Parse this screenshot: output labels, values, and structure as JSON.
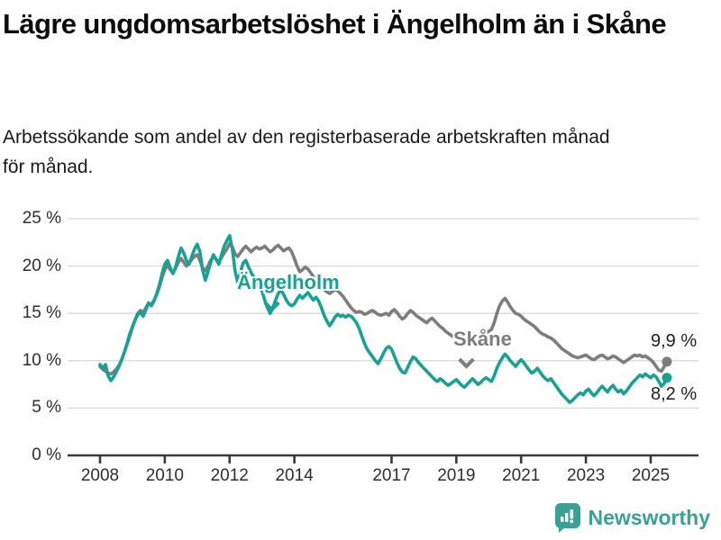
{
  "header": {
    "title": "Lägre ungdomsarbetslöshet i Ängelholm än i Skåne",
    "subtitle": "Arbetssökande som andel av den registerbaserade arbetskraften månad för månad."
  },
  "chart_data": {
    "type": "line",
    "title": "Lägre ungdomsarbetslöshet i Ängelholm än i Skåne",
    "unit": "%",
    "x_start": "2008-01",
    "x_end": "2025-07",
    "x_frequency": "monthly",
    "ylim": [
      0,
      25
    ],
    "grid": "horizontal",
    "legend_position": "inline-labels",
    "y_tick_labels": [
      "25 %",
      "20 %",
      "15 %",
      "10 %",
      "5 %",
      "0 %"
    ],
    "x_tick_labels": [
      "2008",
      "2010",
      "2012",
      "2014",
      "2017",
      "2019",
      "2021",
      "2023",
      "2025"
    ],
    "series": [
      {
        "name": "Ängelholm",
        "color": "#17a293",
        "end_label": "8,2 %",
        "end_value": 8.2,
        "values": [
          9.6,
          9.2,
          9.6,
          8.4,
          7.9,
          8.3,
          8.8,
          9.4,
          10.1,
          10.9,
          11.8,
          12.8,
          13.6,
          14.3,
          14.9,
          15.1,
          14.7,
          15.4,
          16.1,
          15.8,
          16.3,
          17.1,
          18.0,
          19.2,
          20.2,
          20.6,
          19.8,
          19.2,
          19.9,
          21.0,
          21.9,
          21.4,
          20.6,
          20.2,
          21.0,
          21.8,
          22.3,
          21.5,
          19.6,
          18.5,
          19.4,
          20.4,
          21.2,
          20.7,
          20.2,
          21.2,
          22.1,
          22.7,
          23.2,
          21.8,
          19.5,
          18.3,
          19.3,
          20.3,
          20.6,
          19.9,
          19.3,
          18.8,
          18.3,
          17.8,
          17.4,
          16.4,
          15.6,
          15.0,
          15.6,
          16.4,
          17.1,
          17.5,
          17.0,
          16.4,
          16.0,
          15.8,
          16.0,
          16.5,
          16.9,
          16.6,
          16.9,
          17.2,
          16.8,
          16.4,
          16.7,
          16.3,
          15.6,
          14.8,
          14.2,
          13.7,
          14.1,
          14.6,
          14.9,
          14.7,
          14.8,
          14.6,
          14.8,
          14.7,
          14.4,
          14.0,
          13.4,
          12.6,
          11.8,
          11.2,
          10.8,
          10.4,
          10.0,
          9.7,
          10.2,
          10.8,
          11.3,
          11.5,
          11.2,
          10.5,
          9.8,
          9.2,
          8.8,
          8.7,
          9.3,
          9.9,
          10.4,
          10.2,
          9.8,
          9.5,
          9.2,
          8.9,
          8.6,
          8.3,
          8.0,
          7.8,
          8.1,
          7.9,
          7.6,
          7.4,
          7.6,
          7.8,
          8.0,
          7.7,
          7.4,
          7.2,
          7.5,
          7.8,
          8.1,
          7.8,
          7.5,
          7.7,
          8.0,
          8.2,
          8.0,
          7.8,
          8.4,
          9.2,
          9.8,
          10.3,
          10.7,
          10.4,
          10.0,
          9.7,
          9.4,
          9.8,
          10.1,
          9.8,
          9.4,
          9.0,
          8.7,
          8.9,
          9.2,
          8.8,
          8.4,
          8.1,
          7.9,
          8.1,
          7.7,
          7.3,
          6.9,
          6.5,
          6.2,
          5.9,
          5.6,
          5.8,
          6.1,
          6.4,
          6.6,
          6.4,
          6.8,
          7.0,
          6.6,
          6.3,
          6.6,
          7.0,
          7.3,
          7.0,
          6.7,
          7.1,
          7.4,
          7.0,
          6.7,
          6.9,
          6.5,
          6.8,
          7.2,
          7.6,
          7.9,
          8.2,
          8.5,
          8.3,
          8.6,
          8.4,
          8.2,
          8.5,
          8.3,
          7.8,
          7.3,
          7.6,
          8.2
        ]
      },
      {
        "name": "Skåne",
        "color": "#7d7d7d",
        "end_label": "9,9 %",
        "end_value": 9.9,
        "values": [
          9.4,
          9.1,
          8.9,
          8.7,
          8.6,
          8.8,
          9.1,
          9.5,
          10.1,
          10.9,
          11.7,
          12.6,
          13.5,
          14.3,
          15.0,
          15.3,
          15.1,
          15.6,
          16.1,
          15.9,
          16.4,
          17.0,
          17.8,
          18.8,
          19.6,
          20.1,
          19.6,
          19.3,
          19.8,
          20.4,
          20.8,
          20.4,
          20.0,
          20.3,
          20.7,
          21.0,
          21.2,
          20.6,
          19.8,
          19.5,
          20.0,
          20.6,
          21.0,
          20.7,
          20.4,
          20.9,
          21.4,
          21.8,
          22.4,
          22.0,
          21.3,
          21.0,
          21.4,
          21.8,
          22.1,
          21.8,
          21.5,
          21.8,
          22.0,
          21.8,
          21.9,
          22.1,
          21.8,
          21.5,
          21.7,
          22.0,
          22.2,
          21.9,
          21.6,
          21.8,
          21.9,
          21.5,
          20.8,
          20.0,
          19.4,
          19.6,
          19.9,
          19.7,
          19.3,
          18.9,
          18.5,
          18.0,
          17.7,
          17.5,
          17.3,
          17.1,
          17.3,
          17.5,
          17.4,
          17.1,
          16.8,
          16.4,
          16.0,
          15.6,
          15.3,
          15.1,
          15.2,
          15.1,
          14.9,
          15.0,
          15.2,
          15.3,
          15.1,
          14.9,
          14.8,
          14.9,
          15.0,
          14.8,
          15.2,
          15.4,
          15.1,
          14.7,
          14.4,
          14.6,
          15.0,
          15.3,
          15.1,
          14.8,
          14.6,
          14.4,
          14.2,
          14.0,
          14.3,
          14.5,
          14.2,
          13.9,
          13.6,
          13.4,
          13.1,
          12.9,
          12.7,
          12.5,
          12.8,
          12.6,
          12.4,
          12.3,
          12.5,
          12.7,
          12.5,
          12.3,
          12.2,
          12.4,
          12.6,
          12.9,
          13.1,
          13.3,
          14.0,
          15.0,
          15.8,
          16.3,
          16.6,
          16.2,
          15.7,
          15.3,
          15.0,
          14.9,
          14.7,
          14.4,
          14.2,
          14.0,
          13.8,
          13.6,
          13.3,
          13.0,
          12.8,
          12.7,
          12.5,
          12.4,
          12.2,
          11.9,
          11.6,
          11.3,
          11.1,
          10.9,
          10.7,
          10.5,
          10.4,
          10.3,
          10.4,
          10.5,
          10.6,
          10.4,
          10.2,
          10.1,
          10.3,
          10.5,
          10.6,
          10.4,
          10.2,
          10.3,
          10.5,
          10.4,
          10.2,
          10.0,
          9.8,
          10.0,
          10.2,
          10.4,
          10.6,
          10.5,
          10.6,
          10.4,
          10.5,
          10.3,
          10.1,
          9.8,
          9.4,
          9.0,
          8.9,
          9.4,
          9.9
        ]
      }
    ]
  },
  "footer": {
    "brand": "Newsworthy",
    "brand_color": "#3ba195",
    "logo_icon": "speech-bubble-bar-chart-icon"
  }
}
